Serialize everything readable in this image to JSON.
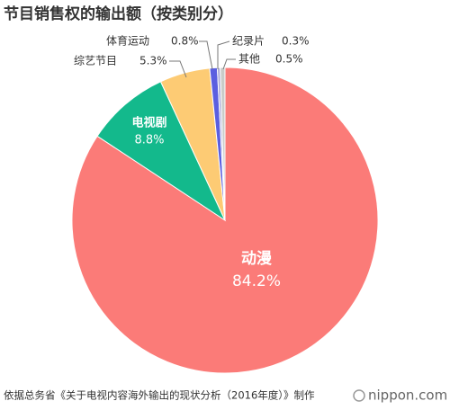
{
  "chart_data": {
    "type": "pie",
    "title": "节目销售权的输出额（按类别分）",
    "categories": [
      "动漫",
      "电视剧",
      "综艺节目",
      "体育运动",
      "纪录片",
      "其他"
    ],
    "values": [
      84.2,
      8.8,
      5.3,
      0.8,
      0.3,
      0.5
    ],
    "value_labels": [
      "84.2%",
      "8.8%",
      "5.3%",
      "0.8%",
      "0.3%",
      "0.5%"
    ],
    "colors": [
      "#fb7b78",
      "#13b98c",
      "#fdcb74",
      "#5b5fe0",
      "#a9a9d6",
      "#c9ccc9"
    ]
  },
  "footer": {
    "source": "依据总务省《关于电视内容海外输出的现状分析（2016年度）》制作",
    "brand": "nippon.com"
  }
}
